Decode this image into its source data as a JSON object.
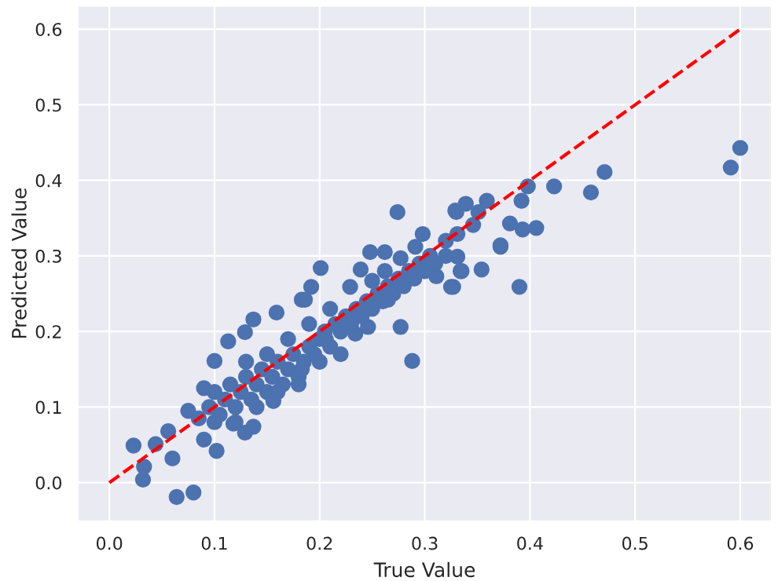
{
  "chart_data": {
    "type": "scatter",
    "xlabel": "True Value",
    "ylabel": "Predicted Value",
    "grid": true,
    "marker": "circle",
    "xlim": [
      -0.03,
      0.63
    ],
    "ylim": [
      -0.051,
      0.631
    ],
    "xticks": [
      {
        "value": 0,
        "label": "0.0"
      },
      0.1,
      0.2,
      0.3,
      0.4,
      0.5,
      0.6
    ],
    "yticks": [
      {
        "value": 0,
        "label": "0.0"
      },
      0.1,
      0.2,
      0.3,
      0.4,
      0.5,
      0.6
    ],
    "series": [
      {
        "color": "#4c72b0",
        "x": [
          0.6,
          0.591,
          0.471,
          0.458,
          0.423,
          0.398,
          0.392,
          0.406,
          0.393,
          0.381,
          0.372,
          0.39,
          0.354,
          0.359,
          0.351,
          0.346,
          0.339,
          0.33,
          0.331,
          0.331,
          0.335,
          0.327,
          0.329,
          0.274,
          0.298,
          0.32,
          0.248,
          0.262,
          0.277,
          0.291,
          0.311,
          0.325,
          0.334,
          0.372,
          0.288,
          0.201,
          0.239,
          0.192,
          0.229,
          0.183,
          0.159,
          0.137,
          0.129,
          0.25,
          0.262,
          0.265,
          0.277,
          0.246,
          0.234,
          0.206,
          0.186,
          0.113,
          0.1,
          0.09,
          0.075,
          0.023,
          0.033,
          0.032,
          0.064,
          0.08,
          0.102,
          0.06,
          0.044,
          0.056,
          0.09,
          0.118,
          0.129,
          0.137,
          0.183,
          0.156,
          0.085,
          0.095,
          0.1,
          0.105,
          0.11,
          0.115,
          0.12,
          0.125,
          0.13,
          0.135,
          0.14,
          0.145,
          0.15,
          0.155,
          0.16,
          0.165,
          0.17,
          0.175,
          0.18,
          0.185,
          0.19,
          0.195,
          0.2,
          0.205,
          0.21,
          0.215,
          0.22,
          0.225,
          0.23,
          0.235,
          0.24,
          0.245,
          0.25,
          0.255,
          0.26,
          0.265,
          0.27,
          0.275,
          0.28,
          0.285,
          0.29,
          0.295,
          0.3,
          0.305,
          0.31,
          0.32,
          0.12,
          0.14,
          0.16,
          0.18,
          0.2,
          0.22,
          0.1,
          0.13,
          0.15,
          0.17,
          0.19,
          0.21
        ],
        "values": [
          0.443,
          0.417,
          0.411,
          0.384,
          0.392,
          0.392,
          0.373,
          0.337,
          0.335,
          0.343,
          0.314,
          0.259,
          0.282,
          0.373,
          0.358,
          0.341,
          0.369,
          0.358,
          0.329,
          0.299,
          0.28,
          0.259,
          0.36,
          0.358,
          0.329,
          0.32,
          0.305,
          0.305,
          0.297,
          0.312,
          0.273,
          0.259,
          0.28,
          0.312,
          0.161,
          0.284,
          0.282,
          0.259,
          0.259,
          0.242,
          0.225,
          0.216,
          0.199,
          0.267,
          0.28,
          0.242,
          0.206,
          0.206,
          0.197,
          0.189,
          0.242,
          0.187,
          0.161,
          0.125,
          0.095,
          0.049,
          0.021,
          0.004,
          -0.019,
          -0.013,
          0.042,
          0.032,
          0.051,
          0.068,
          0.057,
          0.078,
          0.066,
          0.074,
          0.15,
          0.108,
          0.085,
          0.1,
          0.12,
          0.09,
          0.11,
          0.13,
          0.1,
          0.12,
          0.14,
          0.11,
          0.13,
          0.15,
          0.12,
          0.14,
          0.16,
          0.13,
          0.15,
          0.17,
          0.14,
          0.16,
          0.18,
          0.17,
          0.19,
          0.2,
          0.18,
          0.21,
          0.2,
          0.22,
          0.21,
          0.23,
          0.22,
          0.24,
          0.23,
          0.25,
          0.24,
          0.26,
          0.25,
          0.27,
          0.26,
          0.28,
          0.27,
          0.29,
          0.28,
          0.3,
          0.29,
          0.3,
          0.08,
          0.1,
          0.12,
          0.13,
          0.16,
          0.17,
          0.08,
          0.16,
          0.17,
          0.19,
          0.21,
          0.23
        ]
      },
      {
        "type": "line",
        "color": "#ff0000",
        "line_style": "dashed",
        "marker": "none",
        "x": [
          0,
          0.6
        ],
        "values": [
          0,
          0.6
        ]
      }
    ]
  }
}
